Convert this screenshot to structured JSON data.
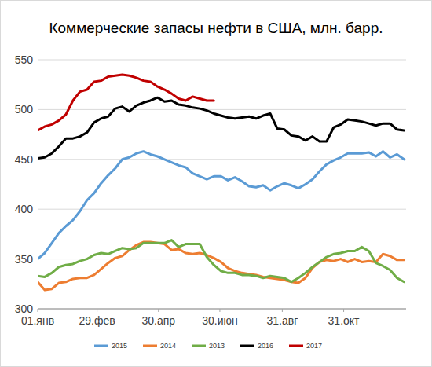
{
  "chart_data": {
    "type": "line",
    "title": "Коммерческие запасы нефти в США, млн. барр.",
    "x": [
      0,
      7,
      14,
      21,
      28,
      35,
      42,
      49,
      56,
      63,
      70,
      77,
      84,
      91,
      98,
      105,
      112,
      119,
      126,
      133,
      140,
      147,
      154,
      161,
      168,
      175,
      182,
      189,
      196,
      203,
      210,
      217,
      224,
      231,
      238,
      245,
      252,
      259,
      266,
      273,
      280,
      287,
      294,
      301,
      308,
      315,
      322,
      329,
      336,
      343,
      350,
      357,
      364
    ],
    "xlim": [
      0,
      366
    ],
    "xticks": [
      {
        "value": 0,
        "label": "01.янв"
      },
      {
        "value": 59,
        "label": "29.фев"
      },
      {
        "value": 120,
        "label": "30.апр"
      },
      {
        "value": 181,
        "label": "30.июн"
      },
      {
        "value": 243,
        "label": "31.авг"
      },
      {
        "value": 304,
        "label": "31.окт"
      }
    ],
    "ylim": [
      300,
      550
    ],
    "yticks": [
      300,
      350,
      400,
      450,
      500,
      550
    ],
    "grid": true,
    "legend": "bottom",
    "series": [
      {
        "name": "2015",
        "color": "#5b9bd5",
        "values": [
          350,
          356,
          366,
          376,
          383,
          389,
          398,
          409,
          416,
          426,
          434,
          441,
          450,
          452,
          456,
          458,
          455,
          453,
          450,
          447,
          444,
          442,
          436,
          433,
          430,
          433,
          433,
          429,
          432,
          428,
          423,
          422,
          424,
          419,
          423,
          426,
          424,
          421,
          425,
          430,
          438,
          445,
          449,
          452,
          456,
          456,
          456,
          457,
          453,
          458,
          452,
          455,
          450
        ]
      },
      {
        "name": "2014",
        "color": "#ed7d31",
        "values": [
          327,
          319,
          320,
          326,
          327,
          330,
          331,
          331,
          334,
          340,
          346,
          351,
          353,
          359,
          364,
          367,
          367,
          366,
          365,
          359,
          360,
          356,
          355,
          356,
          354,
          351,
          347,
          341,
          338,
          336,
          335,
          334,
          332,
          331,
          330,
          329,
          327,
          326,
          331,
          341,
          347,
          349,
          348,
          350,
          347,
          350,
          347,
          348,
          347,
          355,
          353,
          349,
          349
        ]
      },
      {
        "name": "2013",
        "color": "#70ad47",
        "values": [
          333,
          332,
          336,
          342,
          344,
          345,
          348,
          350,
          354,
          356,
          355,
          358,
          361,
          360,
          361,
          366,
          366,
          366,
          366,
          369,
          362,
          365,
          365,
          365,
          352,
          344,
          338,
          336,
          336,
          334,
          334,
          333,
          331,
          333,
          332,
          331,
          327,
          331,
          336,
          342,
          347,
          352,
          355,
          356,
          358,
          358,
          362,
          358,
          346,
          343,
          339,
          331,
          327
        ]
      },
      {
        "name": "2016",
        "color": "#000000",
        "values": [
          451,
          452,
          456,
          463,
          471,
          471,
          473,
          477,
          487,
          491,
          493,
          501,
          503,
          498,
          504,
          507,
          509,
          512,
          508,
          509,
          505,
          504,
          502,
          501,
          499,
          496,
          494,
          492,
          491,
          492,
          493,
          491,
          494,
          496,
          481,
          480,
          474,
          473,
          469,
          473,
          468,
          468,
          482,
          485,
          490,
          489,
          488,
          486,
          484,
          486,
          486,
          480,
          479
        ]
      },
      {
        "name": "2017",
        "color": "#c00000",
        "values": [
          479,
          483,
          485,
          489,
          495,
          509,
          518,
          520,
          528,
          529,
          533,
          534,
          535,
          534,
          532,
          529,
          528,
          523,
          520,
          516,
          511,
          509,
          513,
          511,
          509,
          509,
          null,
          null,
          null,
          null,
          null,
          null,
          null,
          null,
          null,
          null,
          null,
          null,
          null,
          null,
          null,
          null,
          null,
          null,
          null,
          null,
          null,
          null,
          null,
          null,
          null,
          null,
          null
        ]
      }
    ]
  }
}
